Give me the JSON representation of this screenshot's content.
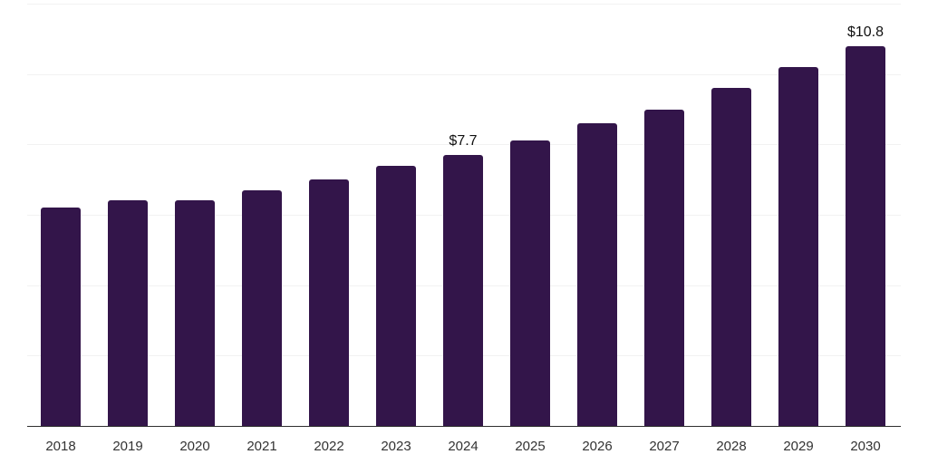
{
  "chart_data": {
    "type": "bar",
    "title": "",
    "xlabel": "",
    "ylabel": "",
    "categories": [
      "2018",
      "2019",
      "2020",
      "2021",
      "2022",
      "2023",
      "2024",
      "2025",
      "2026",
      "2027",
      "2028",
      "2029",
      "2030"
    ],
    "values": [
      6.2,
      6.4,
      6.4,
      6.7,
      7.0,
      7.4,
      7.7,
      8.1,
      8.6,
      9.0,
      9.6,
      10.2,
      10.8
    ],
    "labeled_points": [
      {
        "category": "2024",
        "label": "$7.7"
      },
      {
        "category": "2030",
        "label": "$10.8"
      }
    ],
    "ylim": [
      0,
      12
    ],
    "gridline_step": 2,
    "grid": "horizontal",
    "legend": "none",
    "y_tick_labels_visible": false,
    "bar_color": "#33154a",
    "axis_color": "#2f2f2f",
    "gridline_color": "#f2f2f2",
    "value_label_color": "#111111",
    "tick_label_color": "#333333",
    "background_color": "#ffffff"
  }
}
